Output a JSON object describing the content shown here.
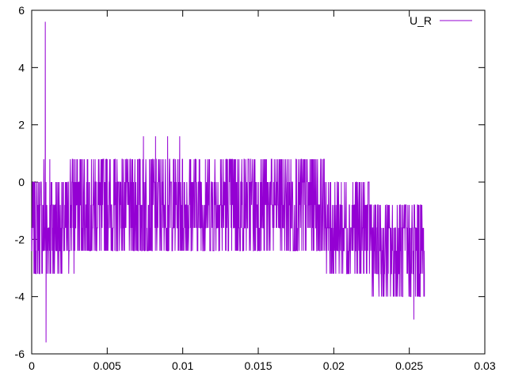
{
  "chart_data": {
    "type": "line",
    "title": "",
    "xlabel": "",
    "ylabel": "",
    "xlim": [
      0,
      0.03
    ],
    "ylim": [
      -6,
      6
    ],
    "x_ticks": [
      0,
      0.005,
      0.01,
      0.015,
      0.02,
      0.025,
      0.03
    ],
    "x_tick_labels": [
      "0",
      "0.005",
      "0.01",
      "0.015",
      "0.02",
      "0.025",
      "0.03"
    ],
    "y_ticks": [
      -6,
      -4,
      -2,
      0,
      2,
      4,
      6
    ],
    "y_tick_labels": [
      "-6",
      "-4",
      "-2",
      "0",
      "2",
      "4",
      "6"
    ],
    "grid": false,
    "legend_position": "top-right",
    "series": [
      {
        "name": "U_R",
        "color": "#9400d3",
        "x_start": 0,
        "x_end": 0.026,
        "points": [
          [
            0.0,
            -2.4
          ],
          [
            0.0002,
            0.0
          ],
          [
            0.0004,
            -2.4
          ],
          [
            0.0006,
            0.0
          ],
          [
            0.0008,
            0.8
          ],
          [
            0.0009,
            5.6
          ],
          [
            0.00095,
            -5.6
          ],
          [
            0.001,
            -3.2
          ],
          [
            0.0012,
            0.8
          ],
          [
            0.0014,
            -3.2
          ],
          [
            0.0016,
            0.0
          ],
          [
            0.002,
            -3.2
          ],
          [
            0.0024,
            -0.8
          ],
          [
            0.0028,
            -3.2
          ],
          [
            0.003,
            0.0
          ],
          [
            0.0034,
            0.8
          ],
          [
            0.0038,
            -2.4
          ],
          [
            0.0042,
            0.8
          ],
          [
            0.0046,
            -2.4
          ],
          [
            0.005,
            0.8
          ],
          [
            0.0055,
            -2.4
          ],
          [
            0.006,
            0.8
          ],
          [
            0.0065,
            -1.6
          ],
          [
            0.007,
            0.8
          ],
          [
            0.0074,
            1.6
          ],
          [
            0.0078,
            -1.6
          ],
          [
            0.0082,
            1.6
          ],
          [
            0.0086,
            -2.4
          ],
          [
            0.009,
            1.6
          ],
          [
            0.0094,
            -1.6
          ],
          [
            0.0098,
            1.6
          ],
          [
            0.01,
            -2.4
          ],
          [
            0.0105,
            0.8
          ],
          [
            0.011,
            -2.4
          ],
          [
            0.0115,
            0.8
          ],
          [
            0.012,
            -2.4
          ],
          [
            0.0125,
            0.8
          ],
          [
            0.013,
            -2.4
          ],
          [
            0.0135,
            0.8
          ],
          [
            0.014,
            -2.4
          ],
          [
            0.0145,
            0.8
          ],
          [
            0.015,
            -2.4
          ],
          [
            0.0155,
            0.8
          ],
          [
            0.016,
            -2.4
          ],
          [
            0.0165,
            0.8
          ],
          [
            0.017,
            -2.4
          ],
          [
            0.0175,
            0.8
          ],
          [
            0.018,
            -2.4
          ],
          [
            0.0185,
            0.8
          ],
          [
            0.019,
            -2.4
          ],
          [
            0.0195,
            0.0
          ],
          [
            0.02,
            -3.2
          ],
          [
            0.0205,
            0.0
          ],
          [
            0.021,
            -3.2
          ],
          [
            0.0215,
            0.0
          ],
          [
            0.022,
            -3.2
          ],
          [
            0.0225,
            -0.8
          ],
          [
            0.023,
            -3.2
          ],
          [
            0.0235,
            -0.8
          ],
          [
            0.024,
            -4.0
          ],
          [
            0.0245,
            -0.8
          ],
          [
            0.025,
            -4.0
          ],
          [
            0.0253,
            -4.8
          ],
          [
            0.0256,
            -0.8
          ],
          [
            0.026,
            -4.0
          ]
        ]
      }
    ]
  }
}
